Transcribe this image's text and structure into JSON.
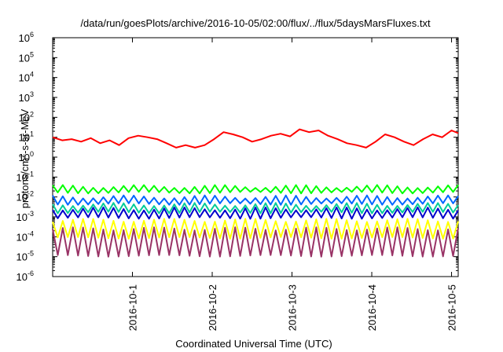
{
  "chart_data": {
    "type": "line",
    "title": "/data/run/goesPlots/archive/2016-10-05/02:00/flux/../flux/5daysMarsFluxes.txt",
    "xlabel": "Coordinated Universal Time (UTC)",
    "ylabel": {
      "base": "protons/cm",
      "sup": "2",
      "rest": "-s-sr-MeV"
    },
    "x_range": [
      "2016-09-30T00:00",
      "2016-10-05T02:00"
    ],
    "ylim": [
      1e-06,
      1000000.0
    ],
    "yscale": "log",
    "x_ticks": [
      "2016-10-1",
      "2016-10-2",
      "2016-10-3",
      "2016-10-4",
      "2016-10-5"
    ],
    "y_ticks": [
      {
        "base": "10",
        "exp": "-6"
      },
      {
        "base": "10",
        "exp": "-5"
      },
      {
        "base": "10",
        "exp": "-4"
      },
      {
        "base": "10",
        "exp": "-3"
      },
      {
        "base": "10",
        "exp": "-2"
      },
      {
        "base": "10",
        "exp": "-1"
      },
      {
        "base": "10",
        "exp": "0"
      },
      {
        "base": "10",
        "exp": "1"
      },
      {
        "base": "10",
        "exp": "2"
      },
      {
        "base": "10",
        "exp": "3"
      },
      {
        "base": "10",
        "exp": "4"
      },
      {
        "base": "10",
        "exp": "5"
      },
      {
        "base": "10",
        "exp": "6"
      }
    ],
    "grid": false,
    "series_colors": [
      "#ff0000",
      "#00ff00",
      "#0066ff",
      "#00cc99",
      "#0000cc",
      "#ffff00",
      "#993366"
    ],
    "series": [
      {
        "color": "#ff0000",
        "x": [
          "2016-09-30T00:00",
          "2016-09-30T02:51",
          "2016-09-30T05:43",
          "2016-09-30T08:34",
          "2016-09-30T11:26",
          "2016-09-30T14:17",
          "2016-09-30T17:09",
          "2016-09-30T20:00",
          "2016-09-30T22:51",
          "2016-10-01T01:43",
          "2016-10-01T04:34",
          "2016-10-01T07:26",
          "2016-10-01T10:17",
          "2016-10-01T13:09",
          "2016-10-01T16:00",
          "2016-10-01T18:51",
          "2016-10-01T21:43",
          "2016-10-02T00:34",
          "2016-10-02T03:26",
          "2016-10-02T06:17",
          "2016-10-02T09:09",
          "2016-10-02T12:00",
          "2016-10-02T14:51",
          "2016-10-02T17:43",
          "2016-10-02T20:34",
          "2016-10-02T23:26",
          "2016-10-03T02:17",
          "2016-10-03T05:09",
          "2016-10-03T08:00",
          "2016-10-03T10:51",
          "2016-10-03T13:43",
          "2016-10-03T16:34",
          "2016-10-03T19:26",
          "2016-10-03T22:17",
          "2016-10-04T01:09",
          "2016-10-04T04:00",
          "2016-10-04T06:51",
          "2016-10-04T09:43",
          "2016-10-04T12:34",
          "2016-10-04T15:26",
          "2016-10-04T18:17",
          "2016-10-04T21:09",
          "2016-10-05T00:00",
          "2016-10-05T02:00"
        ],
        "values": [
          10,
          7,
          8,
          6,
          9,
          5,
          7,
          4,
          9,
          12,
          10,
          8,
          5,
          3,
          4,
          3,
          4,
          8,
          18,
          14,
          10,
          6,
          8,
          12,
          15,
          11,
          25,
          18,
          22,
          12,
          8,
          5,
          4,
          3,
          6,
          14,
          10,
          6,
          4,
          8,
          14,
          10,
          22,
          16
        ]
      },
      {
        "color": "#00ff00",
        "x": [
          "2016-09-30T00:00",
          "2016-10-05T02:00"
        ],
        "values": [
          0.03,
          0.02
        ],
        "pattern": "sawtooth between 0.015 and 0.04, ~40 cycles"
      },
      {
        "color": "#0066ff",
        "x": [
          "2016-09-30T00:00",
          "2016-10-05T02:00"
        ],
        "values": [
          0.01,
          0.006
        ],
        "pattern": "sawtooth between 0.004 and 0.012"
      },
      {
        "color": "#00cc99",
        "x": [
          "2016-09-30T00:00",
          "2016-10-05T02:00"
        ],
        "values": [
          0.004,
          0.003
        ],
        "pattern": "sawtooth between 0.0015 and 0.005"
      },
      {
        "color": "#0000cc",
        "x": [
          "2016-09-30T00:00",
          "2016-10-05T02:00"
        ],
        "values": [
          0.003,
          0.002
        ],
        "pattern": "sawtooth between 0.0008 and 0.003"
      },
      {
        "color": "#ffff00",
        "x": [
          "2016-09-30T00:00",
          "2016-10-05T02:00"
        ],
        "values": [
          0.0006,
          0.0003
        ],
        "pattern": "sawtooth between 0.00008 and 0.0008"
      },
      {
        "color": "#993366",
        "x": [
          "2016-09-30T00:00",
          "2016-10-05T02:00"
        ],
        "values": [
          0.0002,
          1e-05
        ],
        "pattern": "sawtooth between 0.00001 and 0.0003"
      }
    ]
  }
}
